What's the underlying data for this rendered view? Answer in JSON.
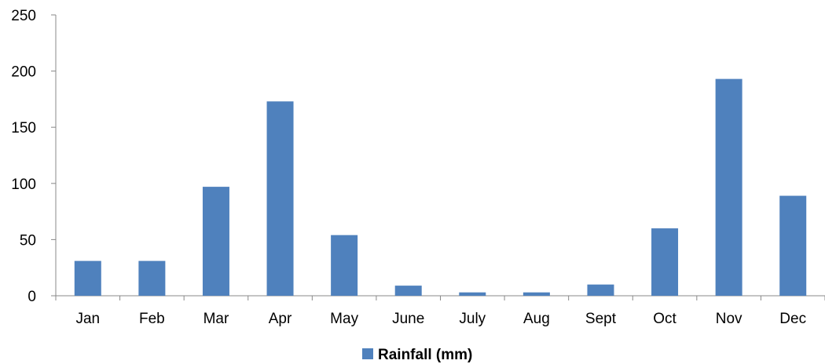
{
  "chart_data": {
    "type": "bar",
    "categories": [
      "Jan",
      "Feb",
      "Mar",
      "Apr",
      "May",
      "June",
      "July",
      "Aug",
      "Sept",
      "Oct",
      "Nov",
      "Dec"
    ],
    "series": [
      {
        "name": "Rainfall (mm)",
        "color": "#4f81bd",
        "values": [
          31,
          31,
          97,
          173,
          54,
          9,
          3,
          3,
          10,
          60,
          193,
          89
        ]
      }
    ],
    "y_ticks": [
      "0",
      "50",
      "100",
      "150",
      "200",
      "250"
    ],
    "ylim": [
      0,
      250
    ],
    "grid": false,
    "legend_position": "bottom",
    "title": "",
    "xlabel": "",
    "ylabel": ""
  }
}
